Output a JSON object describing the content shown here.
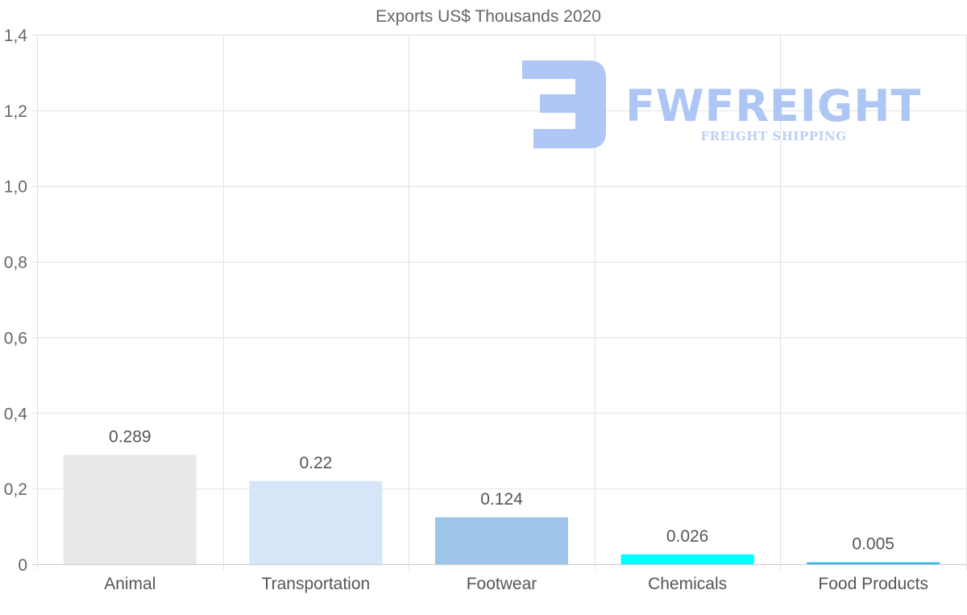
{
  "chart_data": {
    "type": "bar",
    "title": "Exports US$ Thousands 2020",
    "categories": [
      "Animal",
      "Transportation",
      "Footwear",
      "Chemicals",
      "Food Products"
    ],
    "values": [
      0.289,
      0.22,
      0.124,
      0.026,
      0.005
    ],
    "value_labels": [
      "0.289",
      "0.22",
      "0.124",
      "0.026",
      "0.005"
    ],
    "colors": [
      "#e8e8e8",
      "#d6e6f8",
      "#9dc5e8",
      "#00ffff",
      "#33b8e8"
    ],
    "ylim": [
      0,
      1.4
    ],
    "yticks": [
      0,
      0.2,
      0.4,
      0.6,
      0.8,
      1.0,
      1.2,
      1.4
    ],
    "ytick_labels": [
      "0",
      "0,2",
      "0,4",
      "0,6",
      "0,8",
      "1,0",
      "1,2",
      "1,4"
    ],
    "xlabel": "",
    "ylabel": "",
    "grid": true,
    "legend": "none"
  },
  "watermark": {
    "name": "FWFREIGHT",
    "tagline": "FREIGHT SHIPPING",
    "color": "#aac4f4"
  }
}
